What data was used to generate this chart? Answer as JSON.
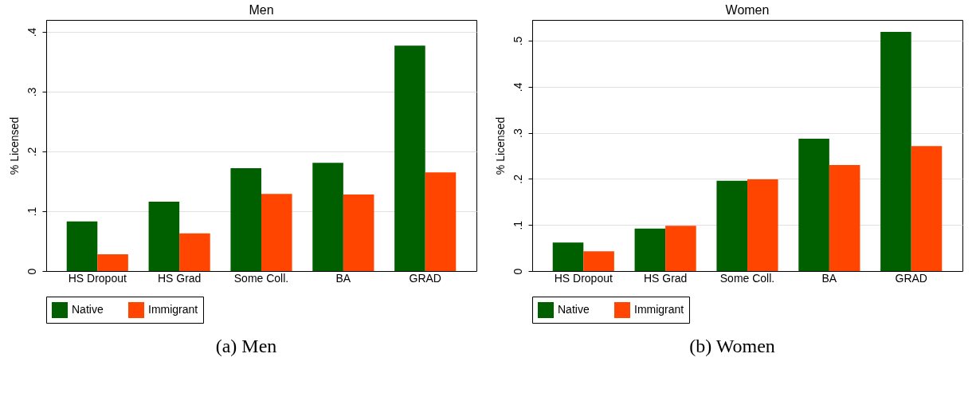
{
  "chart_data": [
    {
      "type": "bar",
      "title": "Men",
      "ylabel": "% Licensed",
      "categories": [
        "HS Dropout",
        "HS Grad",
        "Some Coll.",
        "BA",
        "GRAD"
      ],
      "series": [
        {
          "name": "Native",
          "color": "#006000",
          "values": [
            0.083,
            0.116,
            0.172,
            0.181,
            0.377
          ]
        },
        {
          "name": "Immigrant",
          "color": "#ff4500",
          "values": [
            0.028,
            0.063,
            0.129,
            0.128,
            0.165
          ]
        }
      ],
      "ylim": [
        0,
        0.42
      ],
      "yticks": [
        0,
        {
          "value": 0.1,
          "label": ".1"
        },
        {
          "value": 0.2,
          "label": ".2"
        },
        {
          "value": 0.3,
          "label": ".3"
        },
        {
          "value": 0.4,
          "label": ".4"
        }
      ],
      "grid": "y",
      "legend": "bottom",
      "annotations": [
        "(a) Men"
      ]
    },
    {
      "type": "bar",
      "title": "Women",
      "ylabel": "% Licensed",
      "categories": [
        "HS Dropout",
        "HS Grad",
        "Some Coll.",
        "BA",
        "GRAD"
      ],
      "series": [
        {
          "name": "Native",
          "color": "#006000",
          "values": [
            0.062,
            0.092,
            0.196,
            0.287,
            0.519
          ]
        },
        {
          "name": "Immigrant",
          "color": "#ff4500",
          "values": [
            0.043,
            0.098,
            0.199,
            0.23,
            0.271
          ]
        }
      ],
      "ylim": [
        0,
        0.545
      ],
      "yticks": [
        0,
        {
          "value": 0.1,
          "label": ".1"
        },
        {
          "value": 0.2,
          "label": ".2"
        },
        {
          "value": 0.3,
          "label": ".3"
        },
        {
          "value": 0.4,
          "label": ".4"
        },
        {
          "value": 0.5,
          "label": ".5"
        }
      ],
      "grid": "y",
      "legend": "bottom",
      "annotations": [
        "(b) Women"
      ]
    }
  ]
}
